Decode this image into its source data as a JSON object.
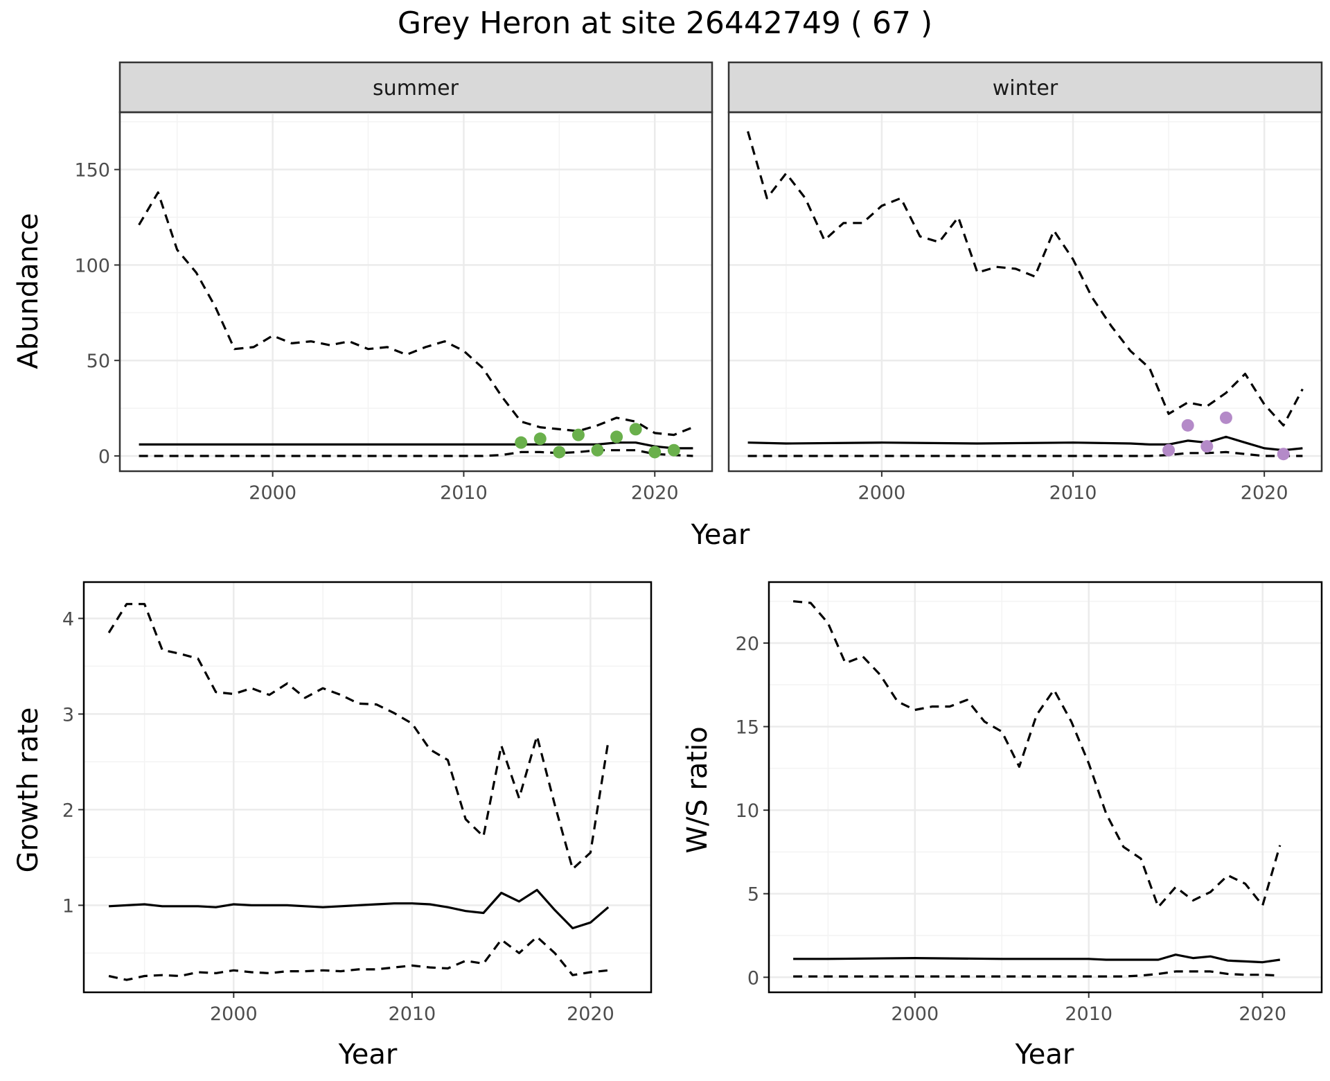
{
  "title": "Grey Heron at site 26442749 ( 67 )",
  "colors": {
    "summer_points": "#6ab04c",
    "winter_points": "#b48ac8",
    "lines": "#000000",
    "strip_fill": "#d9d9d9",
    "grid": "#ebebeb"
  },
  "chart_data": [
    {
      "type": "line",
      "panel": "summer",
      "xlabel": "Year",
      "ylabel": "Abundance",
      "xlim": [
        1992,
        2023
      ],
      "ylim": [
        -8,
        180
      ],
      "xticks": [
        2000,
        2010,
        2020
      ],
      "yticks": [
        0,
        50,
        100,
        150
      ],
      "grid": true,
      "series": [
        {
          "role": "estimate",
          "style": "solid",
          "x": [
            1993,
            1995,
            2000,
            2005,
            2010,
            2013,
            2015,
            2016,
            2017,
            2018,
            2019,
            2020,
            2021,
            2022
          ],
          "y": [
            6,
            6,
            6,
            6,
            6,
            6,
            6,
            6,
            6,
            7,
            7,
            5,
            4,
            4
          ]
        },
        {
          "role": "upper",
          "style": "dashed",
          "x": [
            1993,
            1994,
            1995,
            1996,
            1997,
            1998,
            1999,
            2000,
            2001,
            2002,
            2003,
            2004,
            2005,
            2006,
            2007,
            2008,
            2009,
            2010,
            2011,
            2012,
            2013,
            2014,
            2015,
            2016,
            2017,
            2018,
            2019,
            2020,
            2021,
            2022
          ],
          "y": [
            121,
            138,
            108,
            96,
            78,
            56,
            57,
            63,
            59,
            60,
            58,
            60,
            56,
            57,
            53,
            57,
            60,
            55,
            46,
            31,
            18,
            15,
            14,
            13,
            16,
            20,
            18,
            12,
            11,
            15
          ]
        },
        {
          "role": "lower",
          "style": "dashed",
          "x": [
            1993,
            2000,
            2010,
            2011,
            2012,
            2013,
            2014,
            2015,
            2016,
            2017,
            2018,
            2019,
            2020,
            2021,
            2022
          ],
          "y": [
            0,
            0,
            0,
            0,
            0.5,
            2,
            2,
            1.5,
            2,
            3,
            3,
            3,
            1,
            0.5,
            0
          ]
        },
        {
          "role": "observed",
          "style": "points",
          "x": [
            2013,
            2014,
            2015,
            2016,
            2017,
            2018,
            2019,
            2020,
            2021
          ],
          "y": [
            7,
            9,
            2,
            11,
            3,
            10,
            14,
            2,
            3
          ]
        }
      ]
    },
    {
      "type": "line",
      "panel": "winter",
      "xlabel": "Year",
      "ylabel": "Abundance",
      "xlim": [
        1992,
        2023
      ],
      "ylim": [
        -8,
        180
      ],
      "xticks": [
        2000,
        2010,
        2020
      ],
      "yticks": [
        0,
        50,
        100,
        150
      ],
      "grid": true,
      "series": [
        {
          "role": "estimate",
          "style": "solid",
          "x": [
            1993,
            1995,
            2000,
            2005,
            2010,
            2013,
            2014,
            2015,
            2016,
            2017,
            2018,
            2019,
            2020,
            2021,
            2022
          ],
          "y": [
            7,
            6.5,
            7,
            6.5,
            7,
            6.5,
            6,
            6,
            8,
            7,
            10,
            7,
            4,
            3,
            4
          ]
        },
        {
          "role": "upper",
          "style": "dashed",
          "x": [
            1993,
            1994,
            1995,
            1996,
            1997,
            1998,
            1999,
            2000,
            2001,
            2002,
            2003,
            2004,
            2005,
            2006,
            2007,
            2008,
            2009,
            2010,
            2011,
            2012,
            2013,
            2014,
            2015,
            2016,
            2017,
            2018,
            2019,
            2020,
            2021,
            2022
          ],
          "y": [
            170,
            135,
            148,
            135,
            113,
            122,
            122,
            131,
            135,
            115,
            112,
            125,
            96,
            99,
            98,
            94,
            118,
            103,
            83,
            68,
            55,
            46,
            22,
            28,
            26,
            33,
            43,
            27,
            16,
            35
          ]
        },
        {
          "role": "lower",
          "style": "dashed",
          "x": [
            1993,
            2000,
            2010,
            2014,
            2015,
            2016,
            2017,
            2018,
            2019,
            2020,
            2021,
            2022
          ],
          "y": [
            0,
            0,
            0,
            0,
            0.5,
            1.5,
            1.5,
            2,
            1,
            0,
            0,
            0
          ]
        },
        {
          "role": "observed",
          "style": "points",
          "x": [
            2015,
            2016,
            2017,
            2018,
            2021
          ],
          "y": [
            3,
            16,
            5,
            20,
            1
          ]
        }
      ]
    },
    {
      "type": "line",
      "panel": "growth",
      "xlabel": "Year",
      "ylabel": "Growth rate",
      "xlim": [
        1991.6,
        2023.4
      ],
      "ylim": [
        0.09,
        4.38
      ],
      "xticks": [
        2000,
        2010,
        2020
      ],
      "yticks": [
        1,
        2,
        3,
        4
      ],
      "grid": true,
      "series": [
        {
          "role": "estimate",
          "style": "solid",
          "x": [
            1993,
            1994,
            1995,
            1996,
            1997,
            1998,
            1999,
            2000,
            2001,
            2002,
            2003,
            2004,
            2005,
            2006,
            2007,
            2008,
            2009,
            2010,
            2011,
            2012,
            2013,
            2014,
            2015,
            2016,
            2017,
            2018,
            2019,
            2020,
            2021
          ],
          "y": [
            0.99,
            1.0,
            1.01,
            0.99,
            0.99,
            0.99,
            0.98,
            1.01,
            1.0,
            1.0,
            1.0,
            0.99,
            0.98,
            0.99,
            1.0,
            1.01,
            1.02,
            1.02,
            1.01,
            0.98,
            0.94,
            0.92,
            1.13,
            1.04,
            1.16,
            0.95,
            0.76,
            0.82,
            0.98
          ]
        },
        {
          "role": "upper",
          "style": "dashed",
          "x": [
            1993,
            1994,
            1995,
            1996,
            1997,
            1998,
            1999,
            2000,
            2001,
            2002,
            2003,
            2004,
            2005,
            2006,
            2007,
            2008,
            2009,
            2010,
            2011,
            2012,
            2013,
            2014,
            2015,
            2016,
            2017,
            2018,
            2019,
            2020,
            2021
          ],
          "y": [
            3.85,
            4.15,
            4.15,
            3.67,
            3.63,
            3.58,
            3.23,
            3.21,
            3.27,
            3.2,
            3.32,
            3.17,
            3.27,
            3.2,
            3.11,
            3.1,
            3.01,
            2.9,
            2.63,
            2.52,
            1.9,
            1.72,
            2.67,
            2.12,
            2.77,
            2.05,
            1.38,
            1.55,
            2.72
          ]
        },
        {
          "role": "lower",
          "style": "dashed",
          "x": [
            1993,
            1994,
            1995,
            1996,
            1997,
            1998,
            1999,
            2000,
            2001,
            2002,
            2003,
            2004,
            2005,
            2006,
            2007,
            2008,
            2009,
            2010,
            2011,
            2012,
            2013,
            2014,
            2015,
            2016,
            2017,
            2018,
            2019,
            2020,
            2021
          ],
          "y": [
            0.26,
            0.22,
            0.26,
            0.27,
            0.26,
            0.3,
            0.29,
            0.32,
            0.3,
            0.29,
            0.31,
            0.31,
            0.32,
            0.31,
            0.33,
            0.33,
            0.35,
            0.37,
            0.35,
            0.34,
            0.42,
            0.39,
            0.64,
            0.5,
            0.67,
            0.5,
            0.27,
            0.3,
            0.32
          ]
        }
      ]
    },
    {
      "type": "line",
      "panel": "ws_ratio",
      "xlabel": "Year",
      "ylabel": "W/S ratio",
      "xlim": [
        1991.6,
        2023.4
      ],
      "ylim": [
        -0.9,
        23.65
      ],
      "xticks": [
        2000,
        2010,
        2020
      ],
      "yticks": [
        0,
        5,
        10,
        15,
        20
      ],
      "grid": true,
      "series": [
        {
          "role": "estimate",
          "style": "solid",
          "x": [
            1993,
            1995,
            2000,
            2005,
            2010,
            2011,
            2012,
            2013,
            2014,
            2015,
            2016,
            2017,
            2018,
            2019,
            2020,
            2021
          ],
          "y": [
            1.1,
            1.1,
            1.15,
            1.1,
            1.1,
            1.05,
            1.05,
            1.05,
            1.05,
            1.35,
            1.15,
            1.25,
            1.0,
            0.95,
            0.9,
            1.05
          ]
        },
        {
          "role": "upper",
          "style": "dashed",
          "x": [
            1993,
            1994,
            1995,
            1996,
            1997,
            1998,
            1999,
            2000,
            2001,
            2002,
            2003,
            2004,
            2005,
            2006,
            2007,
            2008,
            2009,
            2010,
            2011,
            2012,
            2013,
            2014,
            2015,
            2016,
            2017,
            2018,
            2019,
            2020,
            2021
          ],
          "y": [
            22.5,
            22.4,
            21.2,
            18.8,
            19.2,
            18.1,
            16.5,
            16.0,
            16.2,
            16.2,
            16.6,
            15.3,
            14.7,
            12.6,
            15.7,
            17.2,
            15.3,
            12.8,
            9.8,
            7.8,
            7.1,
            4.2,
            5.4,
            4.6,
            5.1,
            6.1,
            5.6,
            4.3,
            7.9
          ]
        },
        {
          "role": "lower",
          "style": "dashed",
          "x": [
            1993,
            2000,
            2005,
            2010,
            2012,
            2013,
            2014,
            2015,
            2016,
            2017,
            2018,
            2019,
            2020,
            2021
          ],
          "y": [
            0.05,
            0.05,
            0.05,
            0.05,
            0.05,
            0.1,
            0.2,
            0.35,
            0.35,
            0.35,
            0.2,
            0.15,
            0.15,
            0.1
          ]
        }
      ]
    }
  ],
  "strips": {
    "summer": "summer",
    "winter": "winter"
  }
}
